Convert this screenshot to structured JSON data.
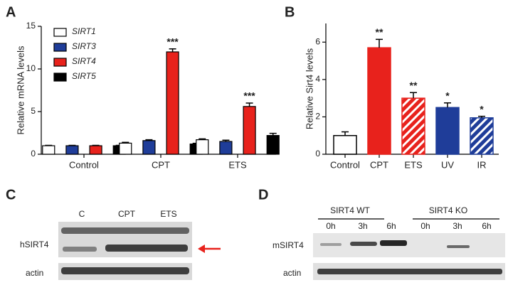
{
  "chart_data": [
    {
      "type": "bar",
      "panel": "A",
      "ylabel": "Relative mRNA levels",
      "categories": [
        "Control",
        "CPT",
        "ETS"
      ],
      "series": [
        {
          "name": "SIRT1",
          "color": "#ffffff",
          "values": [
            1.0,
            1.3,
            1.7
          ],
          "errors": [
            0.04,
            0.1,
            0.1
          ]
        },
        {
          "name": "SIRT3",
          "color": "#1f3d99",
          "values": [
            1.0,
            1.6,
            1.5
          ],
          "errors": [
            0.04,
            0.1,
            0.15
          ]
        },
        {
          "name": "SIRT4",
          "color": "#e8221c",
          "values": [
            1.0,
            12.0,
            5.6
          ],
          "errors": [
            0.04,
            0.35,
            0.4
          ],
          "annotations": [
            null,
            "***",
            "***"
          ]
        },
        {
          "name": "SIRT5",
          "color": "#000000",
          "values": [
            1.0,
            1.2,
            2.2
          ],
          "errors": [
            0.04,
            0.08,
            0.25
          ]
        }
      ],
      "ylim": [
        0,
        15
      ],
      "yticks": [
        0,
        5,
        10,
        15
      ]
    },
    {
      "type": "bar",
      "panel": "B",
      "ylabel": "Relative Sirt4 levels",
      "categories": [
        "Control",
        "CPT",
        "ETS",
        "UV",
        "IR"
      ],
      "values": [
        1.0,
        5.7,
        3.0,
        2.5,
        1.95
      ],
      "errors": [
        0.2,
        0.45,
        0.3,
        0.25,
        0.08
      ],
      "colors": [
        "#ffffff",
        "#e8221c",
        "#e8221c",
        "#1f3d99",
        "#1f3d99"
      ],
      "hatch": [
        false,
        false,
        true,
        false,
        true
      ],
      "annotations": [
        null,
        "**",
        "**",
        "*",
        "*"
      ],
      "ylim": [
        0,
        7
      ],
      "yticks": [
        0,
        2,
        4,
        6
      ]
    }
  ],
  "blots": [
    {
      "panel": "C",
      "lanes": [
        "C",
        "CPT",
        "ETS"
      ],
      "rows": [
        "hSIRT4",
        "actin"
      ]
    },
    {
      "panel": "D",
      "groups": [
        "SIRT4 WT",
        "SIRT4 KO"
      ],
      "lanes": [
        "0h",
        "3h",
        "6h",
        "0h",
        "3h",
        "6h"
      ],
      "rows": [
        "mSIRT4",
        "actin"
      ]
    }
  ]
}
